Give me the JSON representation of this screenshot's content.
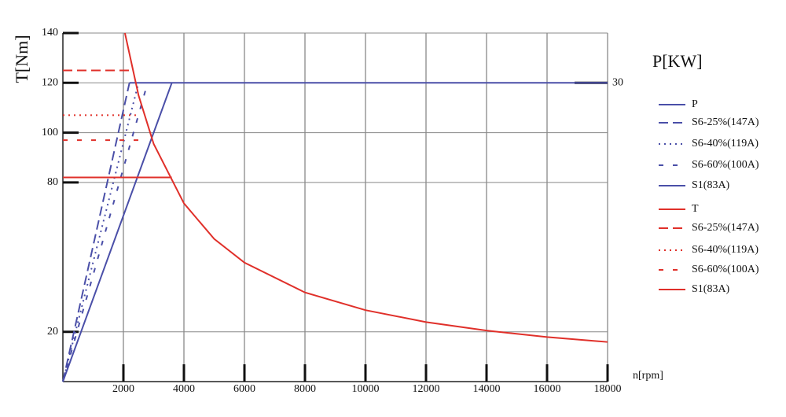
{
  "chart_data": {
    "type": "line",
    "y_label": "T[Nm]",
    "y2_label": "P[KW]",
    "x_label": "n[rpm]",
    "xlim": [
      0,
      18000
    ],
    "xticks": [
      2000,
      4000,
      6000,
      8000,
      10000,
      12000,
      14000,
      16000,
      18000
    ],
    "ylim": [
      0,
      140
    ],
    "yticks": [
      20,
      80,
      100,
      120,
      140
    ],
    "y2lim": [
      0,
      35
    ],
    "y2ticks": [
      30
    ],
    "grid": true,
    "legend": "right",
    "series": [
      {
        "name": "P",
        "color": "#4a4fa8",
        "style": "solid",
        "axis": "y2",
        "x": [
          2200,
          18000
        ],
        "values": [
          30,
          30
        ]
      },
      {
        "name": "S6-25%(147A)",
        "color": "#4a4fa8",
        "style": "dashed",
        "axis": "y2",
        "x": [
          0,
          2200
        ],
        "values": [
          0,
          30
        ]
      },
      {
        "name": "S6-40%(119A)",
        "color": "#4a4fa8",
        "style": "dotted",
        "axis": "y2",
        "x": [
          0,
          2500
        ],
        "values": [
          0,
          30
        ]
      },
      {
        "name": "S6-60%(100A)",
        "color": "#4a4fa8",
        "style": "sparse",
        "axis": "y2",
        "x": [
          0,
          2800
        ],
        "values": [
          0,
          30
        ]
      },
      {
        "name": "S1(83A)",
        "color": "#4a4fa8",
        "style": "solid",
        "axis": "y2",
        "x": [
          0,
          3600
        ],
        "values": [
          0,
          30
        ]
      },
      {
        "name": "T",
        "color": "#e0302a",
        "style": "solid",
        "x": [
          2050,
          2500,
          3000,
          4000,
          5000,
          6000,
          8000,
          10000,
          12000,
          14000,
          16000,
          18000
        ],
        "values": [
          140,
          115,
          95.5,
          71.6,
          57.3,
          47.8,
          35.8,
          28.7,
          23.9,
          20.5,
          17.9,
          15.9
        ]
      },
      {
        "name": "S6-25%(147A)",
        "color": "#e0302a",
        "style": "dashed",
        "x": [
          0,
          2200
        ],
        "values": [
          125,
          125
        ]
      },
      {
        "name": "S6-40%(119A)",
        "color": "#e0302a",
        "style": "dotted",
        "x": [
          0,
          2500
        ],
        "values": [
          107,
          107
        ]
      },
      {
        "name": "S6-60%(100A)",
        "color": "#e0302a",
        "style": "sparse",
        "x": [
          0,
          2800
        ],
        "values": [
          97,
          97
        ]
      },
      {
        "name": "S1(83A)",
        "color": "#e0302a",
        "style": "solid",
        "x": [
          0,
          3600
        ],
        "values": [
          82,
          82
        ]
      }
    ]
  }
}
